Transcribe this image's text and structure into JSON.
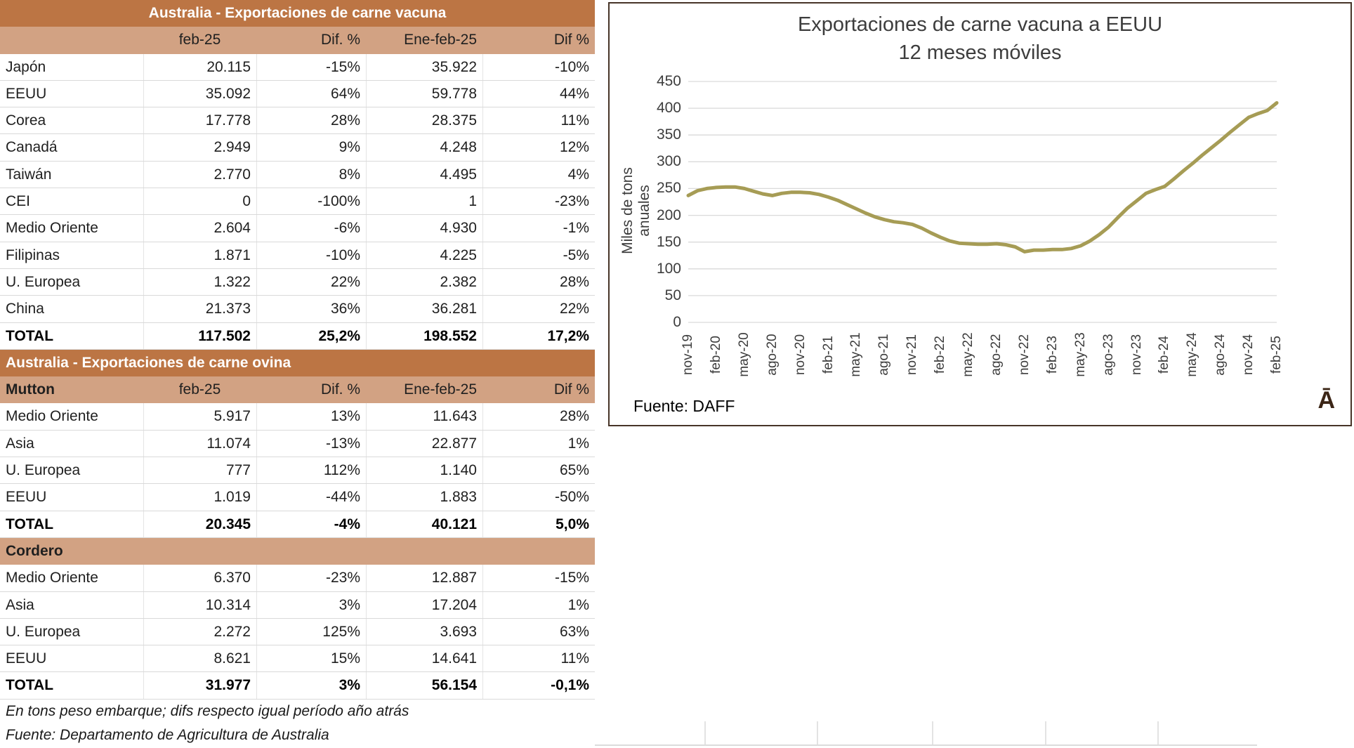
{
  "beef_table": {
    "title": "Australia - Exportaciones de carne vacuna",
    "columns": [
      "",
      "feb-25",
      "Dif. %",
      "Ene-feb-25",
      "Dif %"
    ],
    "header_align": [
      "left",
      "center",
      "right",
      "right",
      "right"
    ],
    "rows": [
      [
        "Japón",
        "20.115",
        "-15%",
        "35.922",
        "-10%"
      ],
      [
        "EEUU",
        "35.092",
        "64%",
        "59.778",
        "44%"
      ],
      [
        "Corea",
        "17.778",
        "28%",
        "28.375",
        "11%"
      ],
      [
        "Canadá",
        "2.949",
        "9%",
        "4.248",
        "12%"
      ],
      [
        "Taiwán",
        "2.770",
        "8%",
        "4.495",
        "4%"
      ],
      [
        "CEI",
        "0",
        "-100%",
        "1",
        "-23%"
      ],
      [
        "Medio Oriente",
        "2.604",
        "-6%",
        "4.930",
        "-1%"
      ],
      [
        "Filipinas",
        "1.871",
        "-10%",
        "4.225",
        "-5%"
      ],
      [
        "U. Europea",
        "1.322",
        "22%",
        "2.382",
        "28%"
      ],
      [
        "China",
        "21.373",
        "36%",
        "36.281",
        "22%"
      ]
    ],
    "total": [
      "TOTAL",
      "117.502",
      "25,2%",
      "198.552",
      "17,2%"
    ]
  },
  "sheep_table": {
    "title": "Australia - Exportaciones de carne ovina",
    "mutton": {
      "columns": [
        "Mutton",
        "feb-25",
        "Dif. %",
        "Ene-feb-25",
        "Dif %"
      ],
      "rows": [
        [
          "Medio Oriente",
          "5.917",
          "13%",
          "11.643",
          "28%"
        ],
        [
          "Asia",
          "11.074",
          "-13%",
          "22.877",
          "1%"
        ],
        [
          "U. Europea",
          "777",
          "112%",
          "1.140",
          "65%"
        ],
        [
          "EEUU",
          "1.019",
          "-44%",
          "1.883",
          "-50%"
        ]
      ],
      "total": [
        "TOTAL",
        "20.345",
        "-4%",
        "40.121",
        "5,0%"
      ]
    },
    "cordero": {
      "label": "Cordero",
      "rows": [
        [
          "Medio Oriente",
          "6.370",
          "-23%",
          "12.887",
          "-15%"
        ],
        [
          "Asia",
          "10.314",
          "3%",
          "17.204",
          "1%"
        ],
        [
          "U. Europea",
          "2.272",
          "125%",
          "3.693",
          "63%"
        ],
        [
          "EEUU",
          "8.621",
          "15%",
          "14.641",
          "11%"
        ]
      ],
      "total": [
        "TOTAL",
        "31.977",
        "3%",
        "56.154",
        "-0,1%"
      ]
    }
  },
  "footnotes": [
    "En tons peso embarque; difs respecto igual período año atrás",
    "Fuente: Departamento de Agricultura de Australia"
  ],
  "colors": {
    "band_dark": "#BC7544",
    "band_light": "#D2A283",
    "line": "#A69C55",
    "grid": "#DADADA",
    "logo_brown": "#3B2516"
  },
  "chart_data": {
    "type": "line",
    "title": "Exportaciones de carne vacuna a EEUU",
    "subtitle": "12 meses móviles",
    "ylabel": "Miles de tons anuales",
    "source_label": "Fuente: DAFF",
    "logo": "Ā",
    "ylim": [
      0,
      450
    ],
    "ytick_step": 50,
    "grid": "horizontal",
    "legend": "none",
    "x": [
      "nov-19",
      "dic-19",
      "ene-20",
      "feb-20",
      "mar-20",
      "abr-20",
      "may-20",
      "jun-20",
      "jul-20",
      "ago-20",
      "sep-20",
      "oct-20",
      "nov-20",
      "dic-20",
      "ene-21",
      "feb-21",
      "mar-21",
      "abr-21",
      "may-21",
      "jun-21",
      "jul-21",
      "ago-21",
      "sep-21",
      "oct-21",
      "nov-21",
      "dic-21",
      "ene-22",
      "feb-22",
      "mar-22",
      "abr-22",
      "may-22",
      "jun-22",
      "jul-22",
      "ago-22",
      "sep-22",
      "oct-22",
      "nov-22",
      "dic-22",
      "ene-23",
      "feb-23",
      "mar-23",
      "abr-23",
      "may-23",
      "jun-23",
      "jul-23",
      "ago-23",
      "sep-23",
      "oct-23",
      "nov-23",
      "dic-23",
      "ene-24",
      "feb-24",
      "mar-24",
      "abr-24",
      "may-24",
      "jun-24",
      "jul-24",
      "ago-24",
      "sep-24",
      "oct-24",
      "nov-24",
      "dic-24",
      "ene-25",
      "feb-25"
    ],
    "values": [
      237,
      246,
      250,
      252,
      253,
      253,
      250,
      245,
      240,
      237,
      241,
      243,
      243,
      242,
      239,
      234,
      228,
      220,
      212,
      204,
      197,
      192,
      188,
      186,
      183,
      176,
      167,
      159,
      152,
      148,
      147,
      146,
      146,
      147,
      145,
      141,
      132,
      135,
      135,
      136,
      136,
      138,
      143,
      152,
      164,
      178,
      196,
      213,
      227,
      241,
      248,
      254,
      268,
      283,
      297,
      312,
      326,
      340,
      355,
      369,
      383,
      390,
      396,
      410
    ],
    "x_tick_labels": [
      "nov-19",
      "feb-20",
      "may-20",
      "ago-20",
      "nov-20",
      "feb-21",
      "may-21",
      "ago-21",
      "nov-21",
      "feb-22",
      "may-22",
      "ago-22",
      "nov-22",
      "feb-23",
      "may-23",
      "ago-23",
      "nov-23",
      "feb-24",
      "may-24",
      "ago-24",
      "nov-24",
      "feb-25"
    ]
  }
}
